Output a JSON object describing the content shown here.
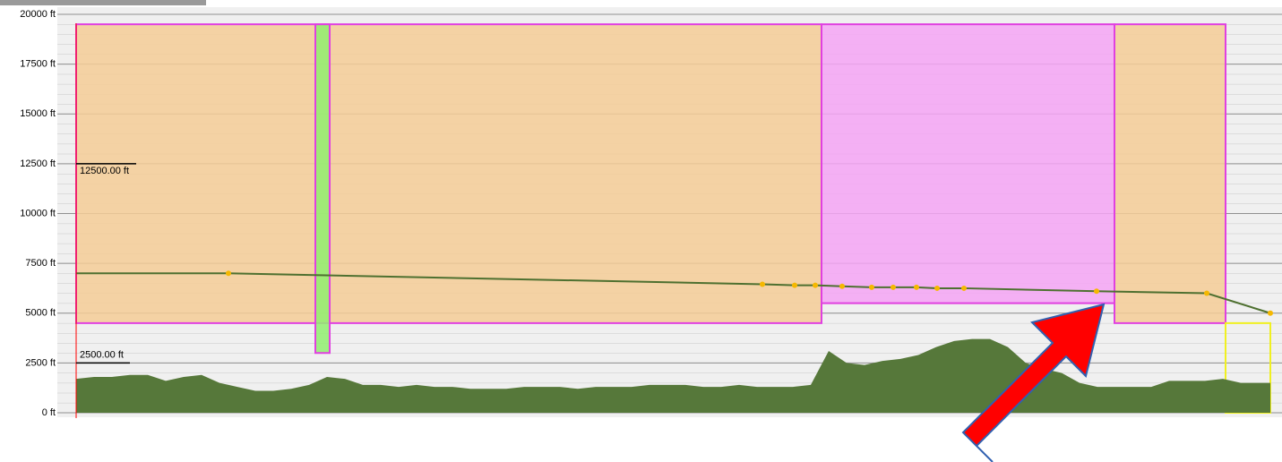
{
  "chart_data": {
    "type": "profile",
    "xlim": [
      0,
      1333
    ],
    "ylim": [
      0,
      20000
    ],
    "yticks": [
      {
        "value": 0,
        "label": "0 ft"
      },
      {
        "value": 2500,
        "label": "2500 ft"
      },
      {
        "value": 5000,
        "label": "5000 ft"
      },
      {
        "value": 7500,
        "label": "7500 ft"
      },
      {
        "value": 10000,
        "label": "10000 ft"
      },
      {
        "value": 12500,
        "label": "12500 ft"
      },
      {
        "value": 15000,
        "label": "15000 ft"
      },
      {
        "value": 17500,
        "label": "17500 ft"
      },
      {
        "value": 20000,
        "label": "20000 ft"
      }
    ],
    "grid": true,
    "annotations": [
      {
        "value": 12500,
        "label": "12500.00 ft"
      },
      {
        "value": 2500,
        "label": "2500.00 ft"
      }
    ],
    "airspaces": [
      {
        "x": [
          0,
          832
        ],
        "bottom": 4500,
        "top": 19500,
        "color": "#f5cc96",
        "edge": "#e040e0"
      },
      {
        "x": [
          267,
          283
        ],
        "bottom": 3000,
        "top": 19500,
        "color": "#90ee70",
        "edge": "#e040e0"
      },
      {
        "x": [
          832,
          1159
        ],
        "bottom": 5500,
        "top": 19500,
        "color": "#f4a4f4",
        "edge": "#e040e0"
      },
      {
        "x": [
          1159,
          1283
        ],
        "bottom": 4500,
        "top": 19500,
        "color": "#f5cc96",
        "edge": "#e040e0"
      },
      {
        "x": [
          1283,
          1333
        ],
        "bottom": 0,
        "top": 4500,
        "color": "none",
        "edge": "#f0f020"
      }
    ],
    "terrain": {
      "color": "#56783a",
      "x": [
        0,
        20,
        40,
        60,
        80,
        100,
        120,
        140,
        160,
        180,
        200,
        220,
        240,
        260,
        280,
        300,
        320,
        340,
        360,
        380,
        400,
        420,
        440,
        460,
        480,
        500,
        520,
        540,
        560,
        580,
        600,
        620,
        640,
        660,
        680,
        700,
        720,
        740,
        760,
        780,
        800,
        820,
        840,
        860,
        880,
        900,
        920,
        940,
        960,
        980,
        1000,
        1020,
        1040,
        1060,
        1080,
        1100,
        1120,
        1140,
        1160,
        1180,
        1200,
        1220,
        1240,
        1260,
        1280,
        1300,
        1320,
        1333
      ],
      "values": [
        1700,
        1800,
        1800,
        1900,
        1900,
        1600,
        1800,
        1900,
        1500,
        1300,
        1100,
        1100,
        1200,
        1400,
        1800,
        1700,
        1400,
        1400,
        1300,
        1400,
        1300,
        1300,
        1200,
        1200,
        1200,
        1300,
        1300,
        1300,
        1200,
        1300,
        1300,
        1300,
        1400,
        1400,
        1400,
        1300,
        1300,
        1400,
        1300,
        1300,
        1300,
        1400,
        3100,
        2500,
        2400,
        2600,
        2700,
        2900,
        3300,
        3600,
        3700,
        3700,
        3300,
        2500,
        2200,
        2000,
        1500,
        1300,
        1300,
        1300,
        1300,
        1600,
        1600,
        1600,
        1700,
        1500,
        1500,
        1500
      ]
    },
    "route": {
      "color": "#4e7030",
      "point_color": "#f5b800",
      "x": [
        0,
        170,
        766,
        802,
        825,
        855,
        888,
        912,
        938,
        961,
        991,
        1139,
        1262,
        1333
      ],
      "values": [
        7000,
        7000,
        6450,
        6400,
        6400,
        6350,
        6300,
        6300,
        6300,
        6250,
        6250,
        6100,
        6000,
        5000
      ]
    }
  }
}
